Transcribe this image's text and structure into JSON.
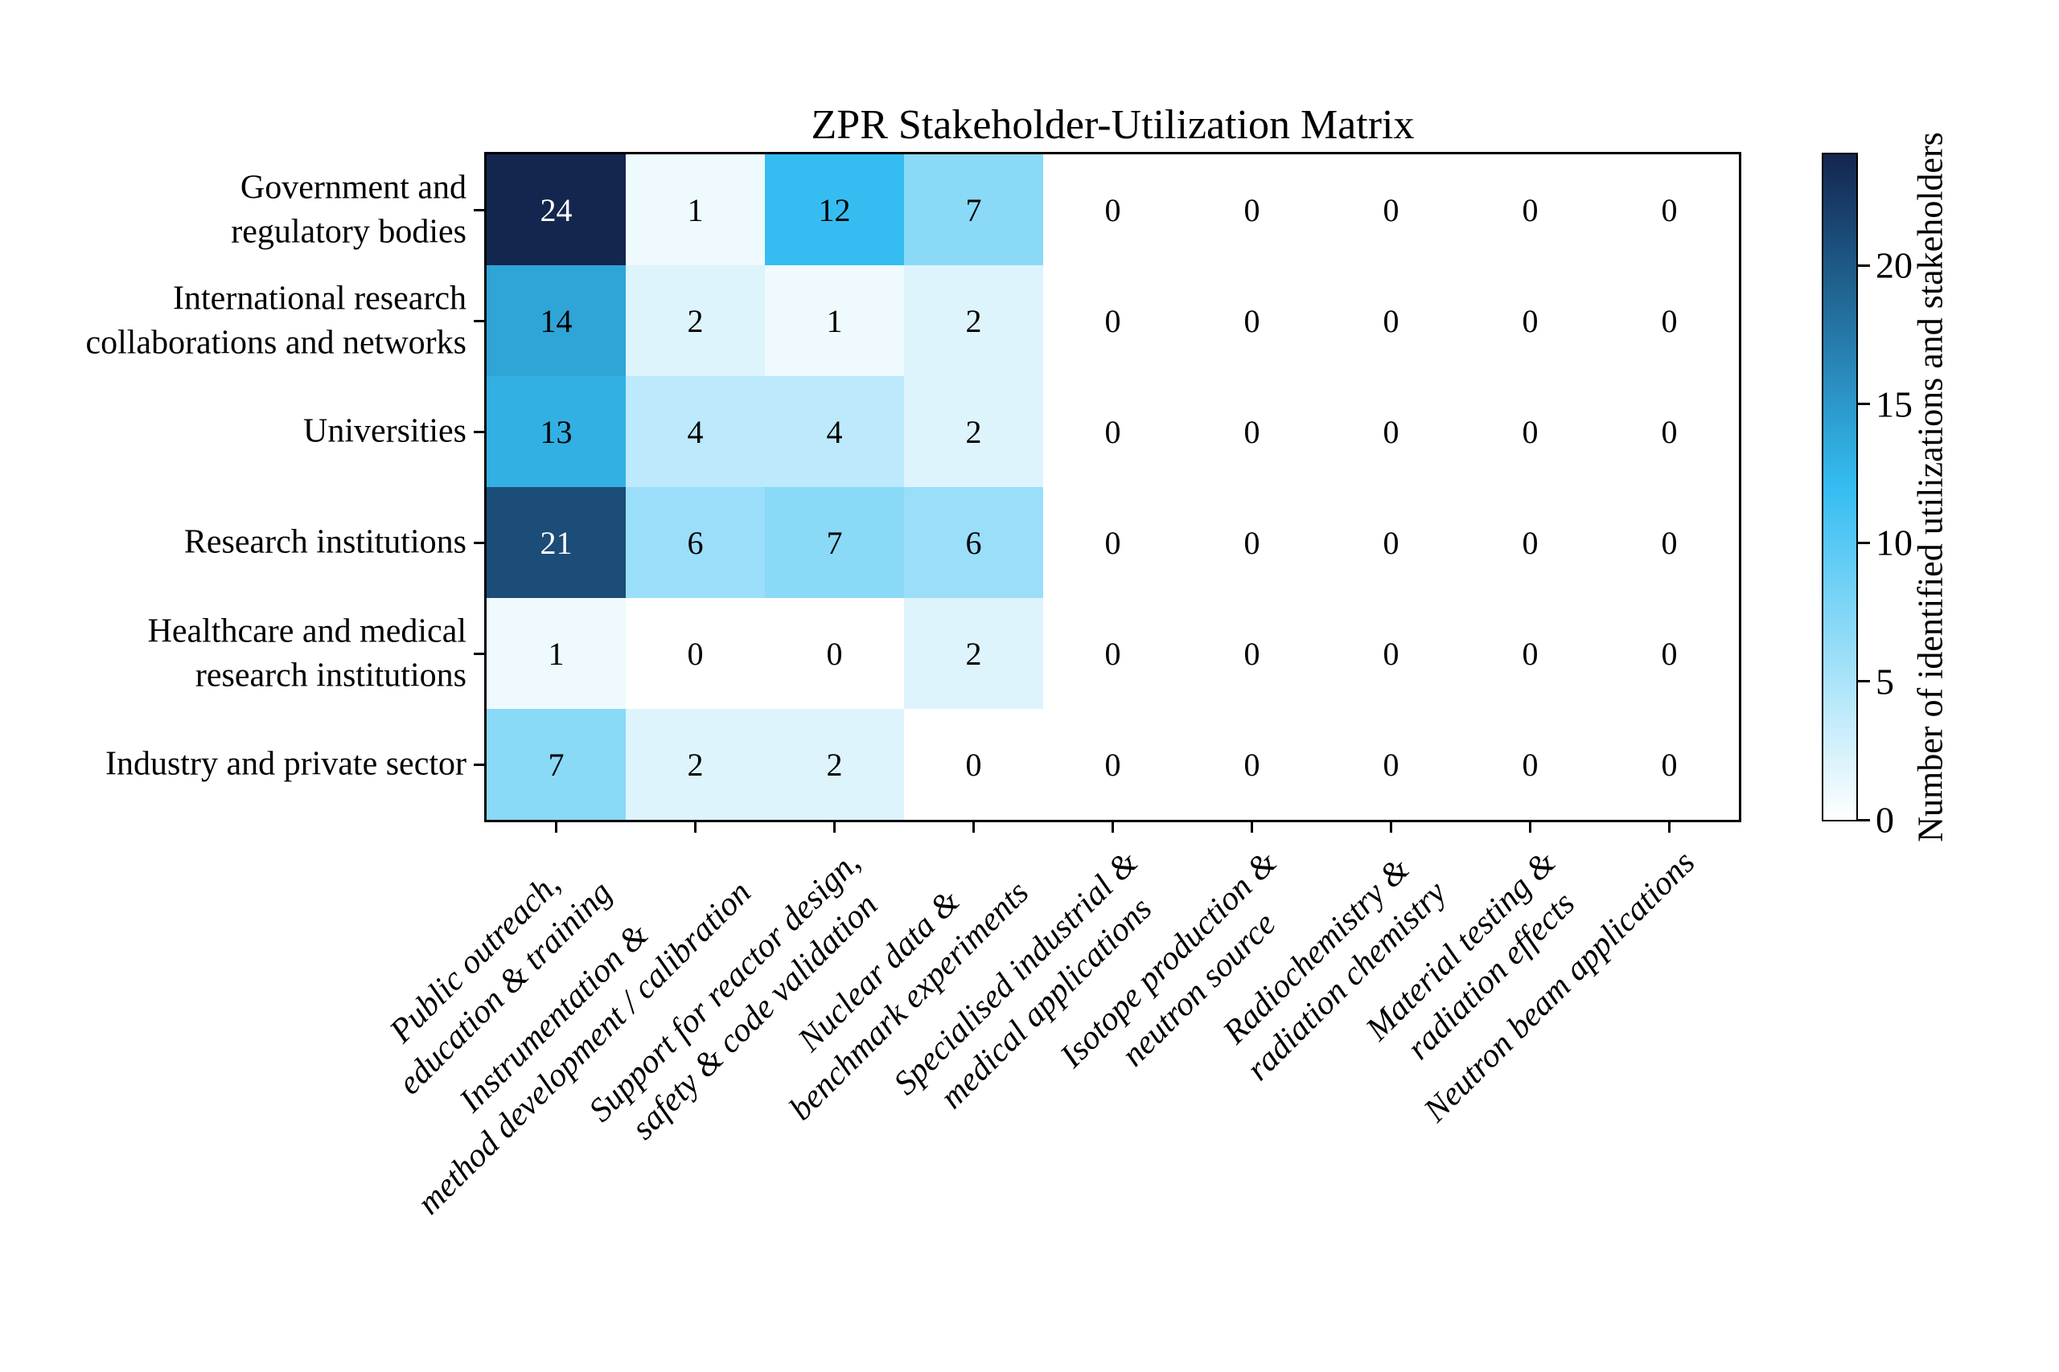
{
  "chart_data": {
    "type": "heatmap",
    "title": "ZPR Stakeholder-Utilization Matrix",
    "rows": [
      [
        "Government and",
        "regulatory bodies"
      ],
      [
        "International research",
        "collaborations and networks"
      ],
      [
        "Universities"
      ],
      [
        "Research institutions"
      ],
      [
        "Healthcare and medical",
        "research institutions"
      ],
      [
        "Industry and private sector"
      ]
    ],
    "columns": [
      [
        "Public outreach,",
        "education & training"
      ],
      [
        "Instrumentation &",
        "method development / calibration"
      ],
      [
        "Support for reactor design,",
        "safety & code validation"
      ],
      [
        "Nuclear data &",
        "benchmark experiments"
      ],
      [
        "Specialised industrial &",
        "medical applications"
      ],
      [
        "Isotope production &",
        "neutron source"
      ],
      [
        "Radiochemistry &",
        "radiation chemistry"
      ],
      [
        "Material testing &",
        "radiation effects"
      ],
      [
        "Neutron beam applications"
      ]
    ],
    "values": [
      [
        24,
        1,
        12,
        7,
        0,
        0,
        0,
        0,
        0
      ],
      [
        14,
        2,
        1,
        2,
        0,
        0,
        0,
        0,
        0
      ],
      [
        13,
        4,
        4,
        2,
        0,
        0,
        0,
        0,
        0
      ],
      [
        21,
        6,
        7,
        6,
        0,
        0,
        0,
        0,
        0
      ],
      [
        1,
        0,
        0,
        2,
        0,
        0,
        0,
        0,
        0
      ],
      [
        7,
        2,
        2,
        0,
        0,
        0,
        0,
        0,
        0
      ]
    ],
    "vmin": 0,
    "vmax": 24,
    "colormap_stops": [
      [
        0.0,
        "#ffffff"
      ],
      [
        0.5,
        "#35bdf2"
      ],
      [
        1.0,
        "#13264f"
      ]
    ],
    "cell_text_colors": {
      "dark_cells": "#ffffff",
      "light_cells": "#000000"
    },
    "white_text_threshold": 0.7,
    "colorbar": {
      "label": "Number of identified utilizations and stakeholders",
      "ticks": [
        0,
        5,
        10,
        15,
        20
      ]
    },
    "layout": {
      "grid": false,
      "legend": false,
      "x_tick_rotation_deg": 45
    }
  }
}
